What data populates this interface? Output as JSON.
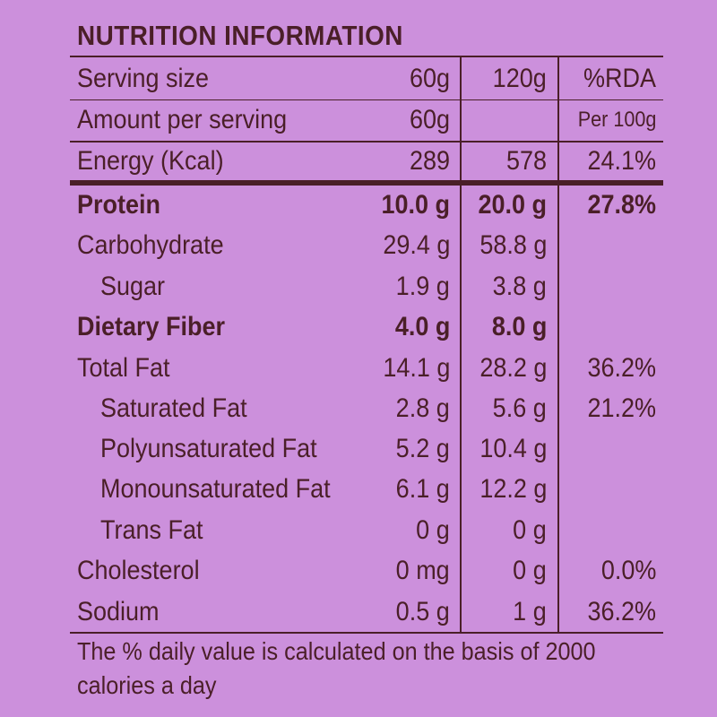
{
  "title": "NUTRITION INFORMATION",
  "header_rows": [
    {
      "label": "Serving size",
      "col1": "60g",
      "col2": "120g",
      "col3": "%RDA"
    },
    {
      "label": "Amount per serving",
      "col1": "60g",
      "col2": "",
      "col3": "Per 100g"
    },
    {
      "label": "Energy (Kcal)",
      "col1": "289",
      "col2": "578",
      "col3": "24.1%"
    }
  ],
  "nutrients": [
    {
      "label": "Protein",
      "col1": "10.0 g",
      "col2": "20.0 g",
      "col3": "27.8%",
      "bold": true,
      "indent": false
    },
    {
      "label": "Carbohydrate",
      "col1": "29.4 g",
      "col2": "58.8 g",
      "col3": "",
      "bold": false,
      "indent": false
    },
    {
      "label": "Sugar",
      "col1": "1.9 g",
      "col2": "3.8 g",
      "col3": "",
      "bold": false,
      "indent": true
    },
    {
      "label": "Dietary Fiber",
      "col1": "4.0 g",
      "col2": "8.0 g",
      "col3": "",
      "bold": true,
      "indent": false
    },
    {
      "label": "Total Fat",
      "col1": "14.1 g",
      "col2": "28.2 g",
      "col3": "36.2%",
      "bold": false,
      "indent": false
    },
    {
      "label": "Saturated Fat",
      "col1": "2.8 g",
      "col2": "5.6 g",
      "col3": "21.2%",
      "bold": false,
      "indent": true
    },
    {
      "label": "Polyunsaturated Fat",
      "col1": "5.2 g",
      "col2": "10.4 g",
      "col3": "",
      "bold": false,
      "indent": true
    },
    {
      "label": "Monounsaturated Fat",
      "col1": "6.1 g",
      "col2": "12.2 g",
      "col3": "",
      "bold": false,
      "indent": true
    },
    {
      "label": "Trans Fat",
      "col1": "0 g",
      "col2": "0 g",
      "col3": "",
      "bold": false,
      "indent": true
    },
    {
      "label": "Cholesterol",
      "col1": "0 mg",
      "col2": "0 g",
      "col3": "0.0%",
      "bold": false,
      "indent": false
    },
    {
      "label": "Sodium",
      "col1": "0.5 g",
      "col2": "1 g",
      "col3": "36.2%",
      "bold": false,
      "indent": false
    }
  ],
  "footnote": "The % daily value is calculated on the basis of 2000 calories a day",
  "colors": {
    "background": "#cc90dc",
    "text": "#4a1f28"
  }
}
